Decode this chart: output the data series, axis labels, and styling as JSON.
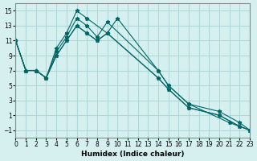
{
  "xlabel": "Humidex (Indice chaleur)",
  "background_color": "#d6f0f0",
  "grid_color": "#b0d8d8",
  "line_color": "#006666",
  "xlim": [
    0,
    23
  ],
  "ylim": [
    -2,
    16
  ],
  "xticks": [
    0,
    1,
    2,
    3,
    4,
    5,
    6,
    7,
    8,
    9,
    10,
    11,
    12,
    13,
    14,
    15,
    16,
    17,
    18,
    19,
    20,
    21,
    22,
    23
  ],
  "yticks": [
    -1,
    1,
    3,
    5,
    7,
    9,
    11,
    13,
    15
  ],
  "lines_x": [
    [
      0,
      1,
      2,
      3,
      4,
      5,
      6,
      7,
      9,
      10,
      14,
      15,
      17,
      21,
      23
    ],
    [
      0,
      1,
      2,
      3,
      4,
      5,
      6,
      7,
      8,
      9,
      14,
      15,
      17,
      20,
      22,
      23
    ],
    [
      0,
      1,
      2,
      3,
      4,
      5,
      6,
      7,
      8,
      9,
      14,
      15,
      17,
      20,
      22,
      23
    ],
    [
      0,
      1,
      2,
      3,
      4,
      5,
      6,
      7,
      8,
      9,
      14,
      15,
      17,
      20,
      22,
      23
    ]
  ],
  "lines_y": [
    [
      11,
      7,
      7,
      6,
      10,
      12,
      15,
      14,
      12,
      14,
      7,
      5,
      2.5,
      0,
      -1
    ],
    [
      11,
      7,
      7,
      6,
      9.5,
      11.5,
      14,
      13,
      11.5,
      13.5,
      7,
      5,
      2.5,
      1.5,
      0,
      -1
    ],
    [
      11,
      7,
      7,
      6,
      9,
      11,
      13,
      12,
      11,
      12,
      6,
      4.5,
      2,
      1,
      -0.5,
      -1
    ],
    [
      11,
      7,
      7,
      6,
      9,
      11,
      13,
      12,
      11,
      12,
      6,
      4.5,
      2,
      1,
      -0.5,
      -1
    ]
  ]
}
